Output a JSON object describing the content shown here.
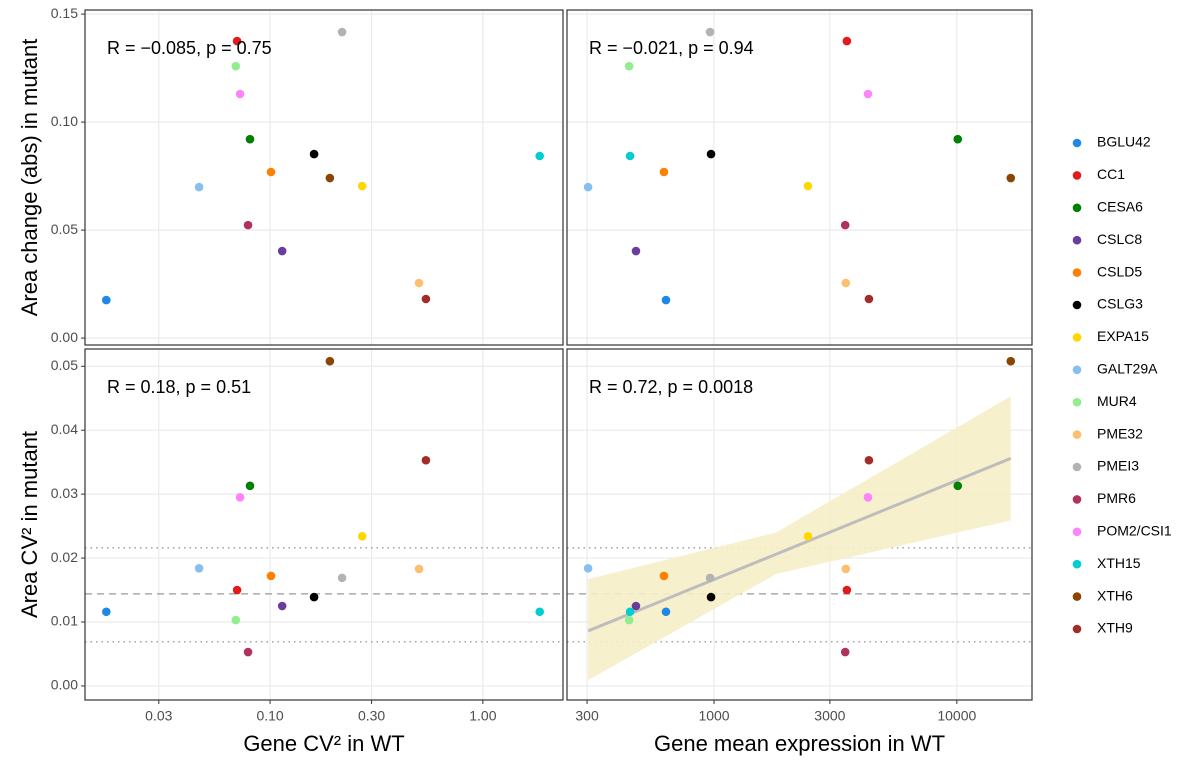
{
  "legend": [
    {
      "name": "BGLU42",
      "color": "#1e88e5"
    },
    {
      "name": "CC1",
      "color": "#e31a1c"
    },
    {
      "name": "CESA6",
      "color": "#008000"
    },
    {
      "name": "CSLC8",
      "color": "#6a3d9a"
    },
    {
      "name": "CSLD5",
      "color": "#ff7f00"
    },
    {
      "name": "CSLG3",
      "color": "#000000"
    },
    {
      "name": "EXPA15",
      "color": "#ffd700"
    },
    {
      "name": "GALT29A",
      "color": "#87bfef"
    },
    {
      "name": "MUR4",
      "color": "#90ee90"
    },
    {
      "name": "PME32",
      "color": "#fdbf6f"
    },
    {
      "name": "PMEI3",
      "color": "#b3b3b3"
    },
    {
      "name": "PMR6",
      "color": "#b03060"
    },
    {
      "name": "POM2/CSI1",
      "color": "#ff83fa"
    },
    {
      "name": "XTH15",
      "color": "#00ced1"
    },
    {
      "name": "XTH6",
      "color": "#8b4500"
    },
    {
      "name": "XTH9",
      "color": "#a52a2a"
    }
  ],
  "chart_data": [
    {
      "type": "scatter",
      "log_x": true,
      "grid": true,
      "annotation": "R = −0.085, p = 0.75",
      "ylabel": "Area change (abs) in mutant",
      "x": [
        0.017,
        0.07,
        0.0805,
        0.114,
        0.101,
        0.161,
        0.271,
        0.0464,
        0.069,
        0.501,
        0.218,
        0.0788,
        0.0723,
        1.85,
        0.191,
        0.54
      ],
      "values": [
        0.0176,
        0.1375,
        0.0921,
        0.0403,
        0.0769,
        0.0852,
        0.0704,
        0.0699,
        0.1259,
        0.0255,
        0.1417,
        0.0523,
        0.113,
        0.0843,
        0.0741,
        0.0181
      ],
      "xlim": [
        0.0135,
        2.38
      ],
      "xticks": [
        0.03,
        {
          "value": 0.1,
          "label": "0.10"
        },
        {
          "value": 0.3,
          "label": "0.30"
        },
        {
          "value": 1,
          "label": "1.00"
        }
      ],
      "ylim": [
        -0.0032,
        0.1519
      ],
      "yticks": [
        {
          "value": 0,
          "label": "0.00"
        },
        0.05,
        {
          "value": 0.1,
          "label": "0.10"
        },
        0.15
      ]
    },
    {
      "type": "scatter",
      "log_x": true,
      "grid": true,
      "annotation": "R = −0.021, p = 0.94",
      "x": [
        634,
        3525,
        10090,
        477,
        622,
        972,
        2437,
        303,
        447,
        3490,
        963,
        3470,
        4305,
        451,
        16680,
        4345
      ],
      "values": [
        0.0176,
        0.1375,
        0.0921,
        0.0403,
        0.0769,
        0.0852,
        0.0704,
        0.0699,
        0.1259,
        0.0255,
        0.1417,
        0.0523,
        0.113,
        0.0843,
        0.0741,
        0.0181
      ],
      "xlim": [
        248,
        20400
      ],
      "xticks": [
        300,
        1000,
        3000,
        10000
      ],
      "ylim": [
        -0.0032,
        0.1519
      ],
      "yticks": [
        {
          "value": 0,
          "label": "0.00"
        },
        0.05,
        {
          "value": 0.1,
          "label": "0.10"
        },
        0.15
      ]
    },
    {
      "type": "scatter",
      "log_x": true,
      "grid": true,
      "annotation": "R = 0.18, p = 0.51",
      "ylabel": "Area CV² in mutant",
      "xlabel": "Gene CV² in WT",
      "x": [
        0.017,
        0.07,
        0.0805,
        0.114,
        0.101,
        0.161,
        0.271,
        0.0464,
        0.069,
        0.501,
        0.218,
        0.0788,
        0.0723,
        1.85,
        0.191,
        0.54
      ],
      "values": [
        0.0116,
        0.015,
        0.0313,
        0.0125,
        0.0172,
        0.0139,
        0.0234,
        0.0184,
        0.0103,
        0.0183,
        0.0169,
        0.0053,
        0.0295,
        0.0116,
        0.0508,
        0.0353
      ],
      "xlim": [
        0.0135,
        2.38
      ],
      "xticks": [
        0.03,
        {
          "value": 0.1,
          "label": "0.10"
        },
        {
          "value": 0.3,
          "label": "0.30"
        },
        {
          "value": 1,
          "label": "1.00"
        }
      ],
      "ylim": [
        -0.0022,
        0.0527
      ],
      "yticks": [
        {
          "value": 0,
          "label": "0.00"
        },
        0.01,
        0.02,
        0.03,
        0.04,
        0.05
      ],
      "hlines": [
        {
          "value": 0.0144,
          "style": "dashed"
        },
        {
          "value": 0.0216,
          "style": "dotted"
        },
        {
          "value": 0.0069,
          "style": "dotted"
        }
      ]
    },
    {
      "type": "scatter",
      "log_x": true,
      "grid": true,
      "annotation": "R = 0.72, p = 0.0018",
      "xlabel": "Gene mean expression in WT",
      "x": [
        634,
        3525,
        10090,
        477,
        622,
        972,
        2437,
        303,
        447,
        3490,
        963,
        3470,
        4305,
        451,
        16680,
        4345
      ],
      "values": [
        0.0116,
        0.015,
        0.0313,
        0.0125,
        0.0172,
        0.0139,
        0.0234,
        0.0184,
        0.0103,
        0.0183,
        0.0169,
        0.0053,
        0.0295,
        0.0116,
        0.0508,
        0.0353
      ],
      "xlim": [
        248,
        20400
      ],
      "xticks": [
        300,
        1000,
        3000,
        10000
      ],
      "ylim": [
        -0.0022,
        0.0527
      ],
      "yticks": [
        {
          "value": 0,
          "label": "0.00"
        },
        0.01,
        0.02,
        0.03,
        0.04,
        0.05
      ],
      "hlines": [
        {
          "value": 0.0144,
          "style": "dashed"
        },
        {
          "value": 0.0216,
          "style": "dotted"
        },
        {
          "value": 0.0069,
          "style": "dotted"
        }
      ],
      "fit": {
        "color": "#bdbdbd",
        "band_color": "#f5eec6",
        "x": [
          303,
          1800,
          16680
        ],
        "values": [
          0.0086,
          0.0206,
          0.0356
        ],
        "lower": [
          0.0009,
          0.0175,
          0.0259
        ],
        "upper": [
          0.0167,
          0.024,
          0.0453
        ]
      }
    }
  ]
}
